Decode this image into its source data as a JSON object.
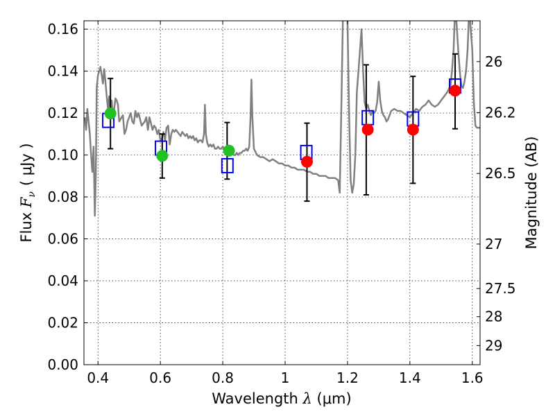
{
  "chart_data": {
    "type": "scatter",
    "xlabel": {
      "prefix": "Wavelength ",
      "symbol": "λ",
      "unit": " (μm)"
    },
    "ylabel": {
      "prefix": "Flux ",
      "symbol": "F",
      "sub": "ν",
      "unit": "( μJy )"
    },
    "y2label": "Magnitude (AB)",
    "xlim": [
      0.355,
      1.625
    ],
    "ylim": [
      0.0,
      0.164
    ],
    "grid": true,
    "x_ticks": [
      {
        "value": 0.4,
        "label": "0.4"
      },
      {
        "value": 0.6,
        "label": "0.6"
      },
      {
        "value": 0.8,
        "label": "0.8"
      },
      {
        "value": 1.0,
        "label": "1"
      },
      {
        "value": 1.2,
        "label": "1.2"
      },
      {
        "value": 1.4,
        "label": "1.4"
      },
      {
        "value": 1.6,
        "label": "1.6"
      }
    ],
    "y_ticks": [
      {
        "value": 0.0,
        "label": "0.00"
      },
      {
        "value": 0.02,
        "label": "0.02"
      },
      {
        "value": 0.04,
        "label": "0.04"
      },
      {
        "value": 0.06,
        "label": "0.06"
      },
      {
        "value": 0.08,
        "label": "0.08"
      },
      {
        "value": 0.1,
        "label": "0.10"
      },
      {
        "value": 0.12,
        "label": "0.12"
      },
      {
        "value": 0.14,
        "label": "0.14"
      },
      {
        "value": 0.16,
        "label": "0.16"
      }
    ],
    "y2_ticks": [
      {
        "mag": 26,
        "label": "26"
      },
      {
        "mag": 26.2,
        "label": "26.2"
      },
      {
        "mag": 26.5,
        "label": "26.5"
      },
      {
        "mag": 27,
        "label": "27"
      },
      {
        "mag": 27.5,
        "label": "27.5"
      },
      {
        "mag": 28,
        "label": "28"
      },
      {
        "mag": 29,
        "label": "29"
      }
    ],
    "series": [
      {
        "kind": "line",
        "color": "#808080",
        "points": [
          [
            0.358,
            0.118
          ],
          [
            0.362,
            0.112
          ],
          [
            0.366,
            0.122
          ],
          [
            0.37,
            0.116
          ],
          [
            0.374,
            0.11
          ],
          [
            0.378,
            0.1
          ],
          [
            0.382,
            0.092
          ],
          [
            0.386,
            0.104
          ],
          [
            0.39,
            0.071
          ],
          [
            0.393,
            0.09
          ],
          [
            0.396,
            0.132
          ],
          [
            0.4,
            0.138
          ],
          [
            0.404,
            0.14
          ],
          [
            0.408,
            0.142
          ],
          [
            0.412,
            0.138
          ],
          [
            0.416,
            0.134
          ],
          [
            0.42,
            0.141
          ],
          [
            0.424,
            0.135
          ],
          [
            0.428,
            0.128
          ],
          [
            0.432,
            0.122
          ],
          [
            0.436,
            0.128
          ],
          [
            0.44,
            0.12
          ],
          [
            0.444,
            0.126
          ],
          [
            0.448,
            0.118
          ],
          [
            0.452,
            0.122
          ],
          [
            0.456,
            0.127
          ],
          [
            0.46,
            0.126
          ],
          [
            0.464,
            0.124
          ],
          [
            0.468,
            0.116
          ],
          [
            0.472,
            0.117
          ],
          [
            0.476,
            0.118
          ],
          [
            0.48,
            0.119
          ],
          [
            0.485,
            0.11
          ],
          [
            0.49,
            0.112
          ],
          [
            0.495,
            0.116
          ],
          [
            0.5,
            0.118
          ],
          [
            0.505,
            0.12
          ],
          [
            0.51,
            0.116
          ],
          [
            0.515,
            0.115
          ],
          [
            0.52,
            0.121
          ],
          [
            0.525,
            0.118
          ],
          [
            0.53,
            0.12
          ],
          [
            0.535,
            0.117
          ],
          [
            0.54,
            0.114
          ],
          [
            0.545,
            0.115
          ],
          [
            0.55,
            0.116
          ],
          [
            0.555,
            0.118
          ],
          [
            0.56,
            0.112
          ],
          [
            0.565,
            0.118
          ],
          [
            0.57,
            0.115
          ],
          [
            0.575,
            0.112
          ],
          [
            0.58,
            0.114
          ],
          [
            0.585,
            0.113
          ],
          [
            0.59,
            0.11
          ],
          [
            0.595,
            0.112
          ],
          [
            0.6,
            0.107
          ],
          [
            0.605,
            0.108
          ],
          [
            0.61,
            0.111
          ],
          [
            0.615,
            0.107
          ],
          [
            0.62,
            0.113
          ],
          [
            0.625,
            0.114
          ],
          [
            0.63,
            0.105
          ],
          [
            0.635,
            0.11
          ],
          [
            0.64,
            0.112
          ],
          [
            0.645,
            0.111
          ],
          [
            0.65,
            0.112
          ],
          [
            0.655,
            0.111
          ],
          [
            0.66,
            0.11
          ],
          [
            0.665,
            0.109
          ],
          [
            0.67,
            0.111
          ],
          [
            0.675,
            0.11
          ],
          [
            0.68,
            0.109
          ],
          [
            0.685,
            0.11
          ],
          [
            0.69,
            0.108
          ],
          [
            0.695,
            0.109
          ],
          [
            0.7,
            0.108
          ],
          [
            0.705,
            0.109
          ],
          [
            0.71,
            0.107
          ],
          [
            0.715,
            0.108
          ],
          [
            0.72,
            0.106
          ],
          [
            0.725,
            0.107
          ],
          [
            0.73,
            0.107
          ],
          [
            0.735,
            0.106
          ],
          [
            0.74,
            0.11
          ],
          [
            0.743,
            0.124
          ],
          [
            0.746,
            0.11
          ],
          [
            0.75,
            0.106
          ],
          [
            0.755,
            0.104
          ],
          [
            0.76,
            0.105
          ],
          [
            0.765,
            0.104
          ],
          [
            0.77,
            0.105
          ],
          [
            0.775,
            0.103
          ],
          [
            0.78,
            0.103
          ],
          [
            0.785,
            0.104
          ],
          [
            0.79,
            0.103
          ],
          [
            0.795,
            0.103
          ],
          [
            0.8,
            0.104
          ],
          [
            0.805,
            0.103
          ],
          [
            0.81,
            0.102
          ],
          [
            0.815,
            0.102
          ],
          [
            0.82,
            0.101
          ],
          [
            0.825,
            0.101
          ],
          [
            0.83,
            0.102
          ],
          [
            0.835,
            0.1
          ],
          [
            0.84,
            0.1
          ],
          [
            0.845,
            0.101
          ],
          [
            0.85,
            0.1
          ],
          [
            0.855,
            0.101
          ],
          [
            0.86,
            0.101
          ],
          [
            0.865,
            0.102
          ],
          [
            0.87,
            0.102
          ],
          [
            0.875,
            0.103
          ],
          [
            0.88,
            0.102
          ],
          [
            0.885,
            0.104
          ],
          [
            0.889,
            0.118
          ],
          [
            0.892,
            0.136
          ],
          [
            0.895,
            0.118
          ],
          [
            0.9,
            0.103
          ],
          [
            0.91,
            0.1
          ],
          [
            0.92,
            0.099
          ],
          [
            0.93,
            0.099
          ],
          [
            0.94,
            0.098
          ],
          [
            0.95,
            0.097
          ],
          [
            0.96,
            0.098
          ],
          [
            0.97,
            0.097
          ],
          [
            0.98,
            0.096
          ],
          [
            0.99,
            0.096
          ],
          [
            1.0,
            0.095
          ],
          [
            1.01,
            0.095
          ],
          [
            1.02,
            0.094
          ],
          [
            1.03,
            0.094
          ],
          [
            1.04,
            0.093
          ],
          [
            1.05,
            0.093
          ],
          [
            1.06,
            0.093
          ],
          [
            1.07,
            0.092
          ],
          [
            1.08,
            0.092
          ],
          [
            1.09,
            0.091
          ],
          [
            1.1,
            0.091
          ],
          [
            1.11,
            0.09
          ],
          [
            1.12,
            0.09
          ],
          [
            1.13,
            0.09
          ],
          [
            1.14,
            0.089
          ],
          [
            1.15,
            0.089
          ],
          [
            1.16,
            0.089
          ],
          [
            1.17,
            0.088
          ],
          [
            1.175,
            0.082
          ],
          [
            1.18,
            0.12
          ],
          [
            1.185,
            0.164
          ],
          [
            1.19,
            0.17
          ],
          [
            1.195,
            0.17
          ],
          [
            1.2,
            0.164
          ],
          [
            1.205,
            0.12
          ],
          [
            1.21,
            0.088
          ],
          [
            1.215,
            0.082
          ],
          [
            1.22,
            0.086
          ],
          [
            1.225,
            0.1
          ],
          [
            1.23,
            0.13
          ],
          [
            1.235,
            0.14
          ],
          [
            1.24,
            0.15
          ],
          [
            1.245,
            0.16
          ],
          [
            1.25,
            0.14
          ],
          [
            1.255,
            0.125
          ],
          [
            1.26,
            0.122
          ],
          [
            1.265,
            0.124
          ],
          [
            1.27,
            0.121
          ],
          [
            1.275,
            0.119
          ],
          [
            1.28,
            0.121
          ],
          [
            1.285,
            0.12
          ],
          [
            1.29,
            0.121
          ],
          [
            1.295,
            0.125
          ],
          [
            1.3,
            0.135
          ],
          [
            1.305,
            0.126
          ],
          [
            1.31,
            0.121
          ],
          [
            1.315,
            0.119
          ],
          [
            1.32,
            0.118
          ],
          [
            1.325,
            0.116
          ],
          [
            1.33,
            0.117
          ],
          [
            1.335,
            0.119
          ],
          [
            1.34,
            0.121
          ],
          [
            1.35,
            0.122
          ],
          [
            1.36,
            0.121
          ],
          [
            1.37,
            0.121
          ],
          [
            1.38,
            0.12
          ],
          [
            1.39,
            0.119
          ],
          [
            1.4,
            0.118
          ],
          [
            1.41,
            0.12
          ],
          [
            1.42,
            0.122
          ],
          [
            1.43,
            0.121
          ],
          [
            1.44,
            0.123
          ],
          [
            1.45,
            0.124
          ],
          [
            1.46,
            0.126
          ],
          [
            1.47,
            0.124
          ],
          [
            1.48,
            0.123
          ],
          [
            1.49,
            0.124
          ],
          [
            1.5,
            0.126
          ],
          [
            1.51,
            0.128
          ],
          [
            1.52,
            0.13
          ],
          [
            1.53,
            0.133
          ],
          [
            1.535,
            0.14
          ],
          [
            1.54,
            0.15
          ],
          [
            1.545,
            0.17
          ],
          [
            1.55,
            0.162
          ],
          [
            1.555,
            0.15
          ],
          [
            1.56,
            0.14
          ],
          [
            1.565,
            0.133
          ],
          [
            1.57,
            0.132
          ],
          [
            1.575,
            0.135
          ],
          [
            1.58,
            0.14
          ],
          [
            1.585,
            0.15
          ],
          [
            1.59,
            0.17
          ],
          [
            1.595,
            0.16
          ],
          [
            1.6,
            0.15
          ],
          [
            1.605,
            0.125
          ],
          [
            1.61,
            0.114
          ],
          [
            1.615,
            0.113
          ],
          [
            1.625,
            0.113
          ]
        ]
      },
      {
        "kind": "errorbar",
        "color": "#000000",
        "points": [
          {
            "x": 0.44,
            "y": 0.1198,
            "lo": 0.103,
            "hi": 0.1365
          },
          {
            "x": 0.606,
            "y": 0.0996,
            "lo": 0.089,
            "hi": 0.11
          },
          {
            "x": 0.814,
            "y": 0.1021,
            "lo": 0.0885,
            "hi": 0.1155
          },
          {
            "x": 1.07,
            "y": 0.0968,
            "lo": 0.078,
            "hi": 0.1152
          },
          {
            "x": 1.26,
            "y": 0.1121,
            "lo": 0.081,
            "hi": 0.143
          },
          {
            "x": 1.41,
            "y": 0.1121,
            "lo": 0.0865,
            "hi": 0.1375
          },
          {
            "x": 1.545,
            "y": 0.1307,
            "lo": 0.1125,
            "hi": 0.1482
          }
        ]
      },
      {
        "kind": "marker",
        "shape": "square-open",
        "color": "#0000ff",
        "points": [
          {
            "x": 0.433,
            "y": 0.1165
          },
          {
            "x": 0.602,
            "y": 0.1033
          },
          {
            "x": 0.815,
            "y": 0.0949
          },
          {
            "x": 1.068,
            "y": 0.1012
          },
          {
            "x": 1.265,
            "y": 0.1178
          },
          {
            "x": 1.41,
            "y": 0.1172
          },
          {
            "x": 1.545,
            "y": 0.1329
          }
        ]
      },
      {
        "kind": "marker",
        "shape": "circle",
        "color": "#22c022",
        "points": [
          {
            "x": 0.44,
            "y": 0.1198
          },
          {
            "x": 0.606,
            "y": 0.0996
          },
          {
            "x": 0.82,
            "y": 0.1021
          }
        ]
      },
      {
        "kind": "marker",
        "shape": "circle",
        "color": "#ff0000",
        "points": [
          {
            "x": 1.07,
            "y": 0.0968
          },
          {
            "x": 1.265,
            "y": 0.1121
          },
          {
            "x": 1.41,
            "y": 0.1121
          },
          {
            "x": 1.545,
            "y": 0.1307
          }
        ]
      }
    ]
  }
}
